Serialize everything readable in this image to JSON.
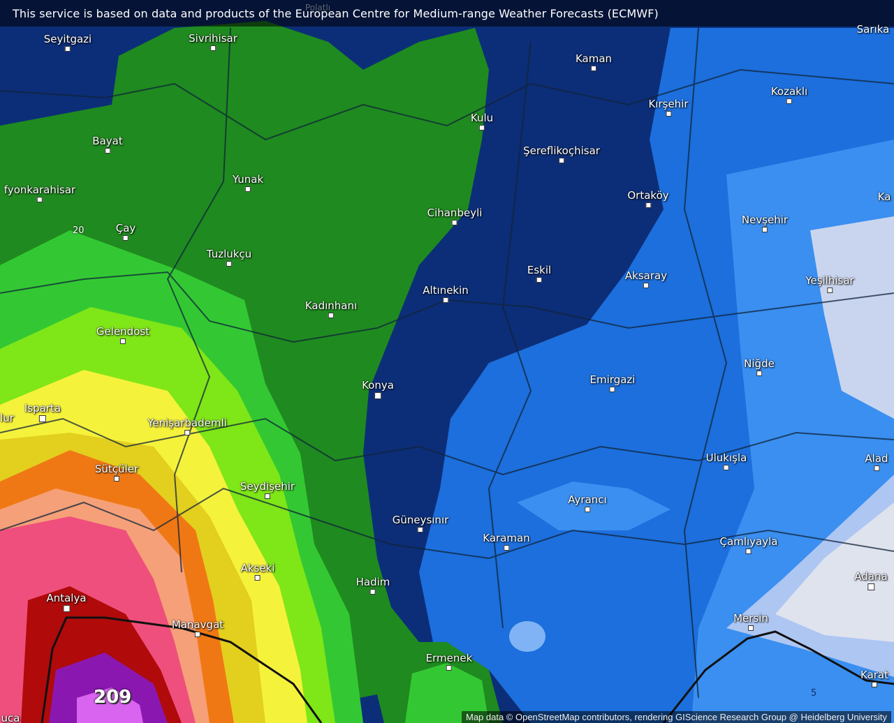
{
  "banner": "This service is based on data and products of the European Centre for Medium-range Weather Forecasts (ECMWF)",
  "attribution": "Map data © OpenStreetMap contributors, rendering GIScience Research Group @ Heidelberg University",
  "colors": {
    "navy": "#0c2e78",
    "green": "#1f8a1f",
    "blue": "#1c6fdc",
    "light_blue": "#3a8ff0",
    "pale": "#c9d5ee",
    "light_green": "#33c833",
    "lime": "#7fe617",
    "yellow": "#f5f23c",
    "dark_yellow": "#e3cf1e",
    "orange": "#f07814",
    "salmon": "#f5a078",
    "pink": "#ef4f7c",
    "dark_red": "#b00a0a",
    "purple": "#8a18b0",
    "light_purple": "#d964ef"
  },
  "cities": [
    "Polatlı",
    "Seyitgazi",
    "Sivrihisar",
    "Kaman",
    "Sarıka",
    "Kozaklı",
    "Kırşehir",
    "Kulu",
    "Bayat",
    "Şereflikoçhisar",
    "Yunak",
    "fyonkarahisar",
    "Ka",
    "Ortaköy",
    "Çay",
    "Cihanbeyli",
    "Nevşehir",
    "Tuzlukçu",
    "Eskil",
    "Aksaray",
    "Yeşilhisar",
    "Altınekin",
    "Kadınhanı",
    "Gelendost",
    "Niğde",
    "Konya",
    "Emirgazi",
    "Isparta",
    "lur",
    "Yenişarbademli",
    "Ulukışla",
    "Alad",
    "Sütçüler",
    "Seydişehir",
    "Ayrancı",
    "Güneysınır",
    "Karaman",
    "Çamlıyayla",
    "Akseki",
    "Adana",
    "Hadim",
    "Antalya",
    "Manavgat",
    "Mersin",
    "Ermenek",
    "Karat",
    "uca"
  ],
  "contour_labels": [
    "20",
    "5",
    "209"
  ]
}
